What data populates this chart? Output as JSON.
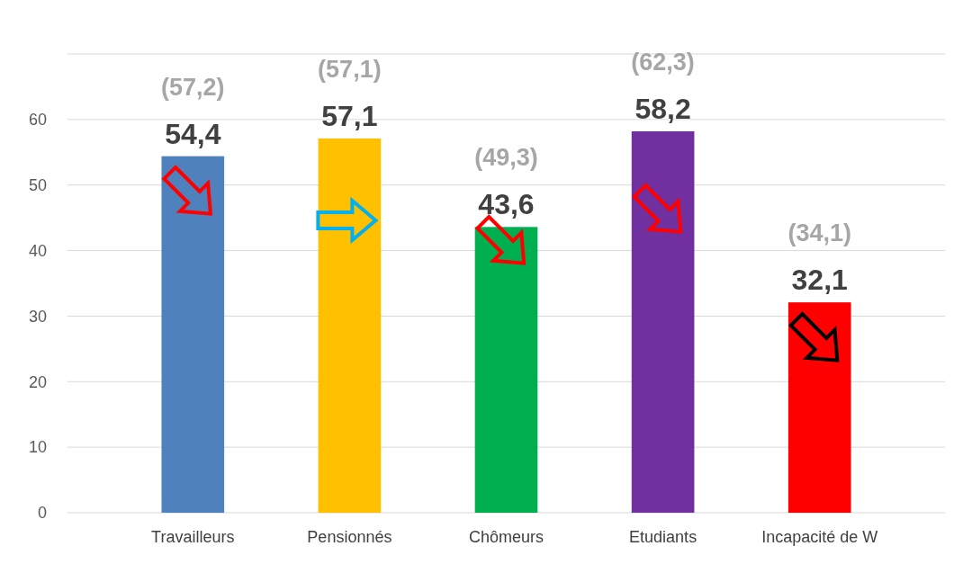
{
  "chart_data": {
    "type": "bar",
    "categories": [
      "Travailleurs",
      "Pensionnés",
      "Chômeurs",
      "Etudiants",
      "Incapacité de W"
    ],
    "values": [
      54.4,
      57.1,
      43.6,
      58.2,
      32.1
    ],
    "colors": [
      "#4f81bd",
      "#ffc000",
      "#00b050",
      "#7030a0",
      "#ff0000"
    ],
    "value_labels": [
      "54,4",
      "57,1",
      "43,6",
      "58,2",
      "32,1"
    ],
    "annotations": [
      "(57,2)",
      "(57,1)",
      "(49,3)",
      "(62,3)",
      "(34,1)"
    ],
    "ylim": [
      0,
      70
    ],
    "yticks": [
      0,
      10,
      20,
      30,
      40,
      50,
      60,
      {
        "value": 70,
        "label": null
      }
    ],
    "grid": "y"
  }
}
